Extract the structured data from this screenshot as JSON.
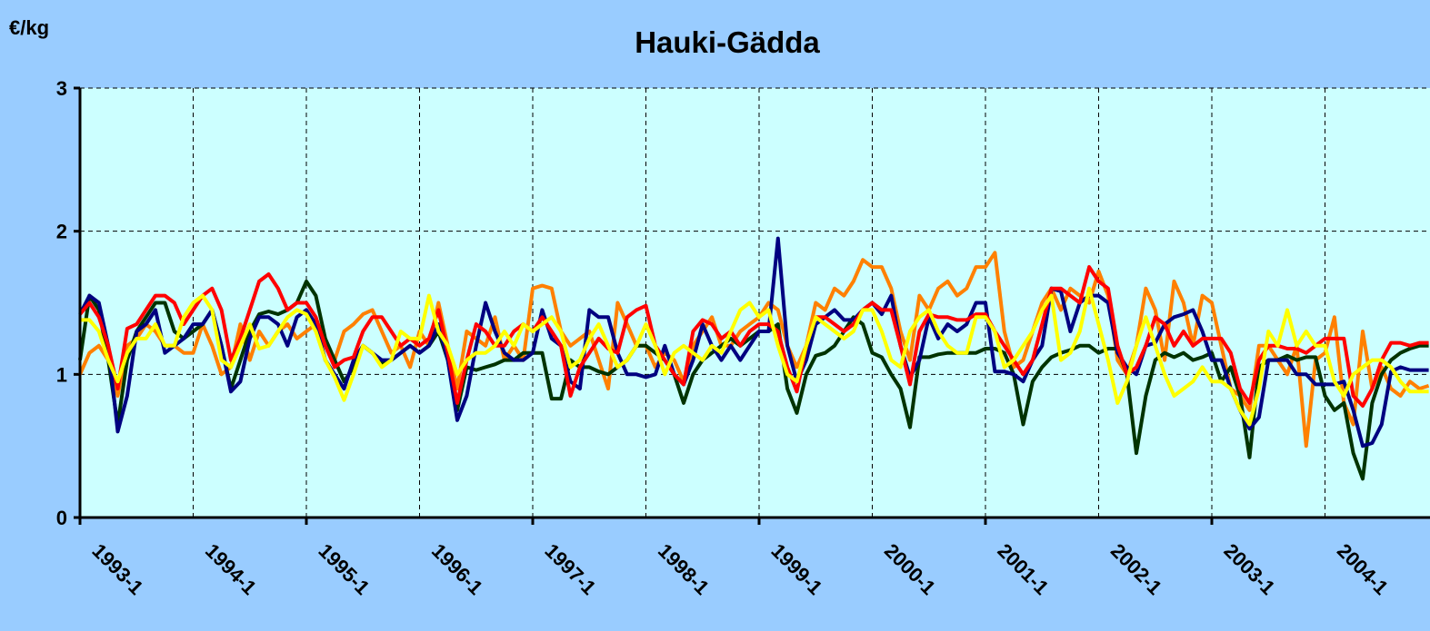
{
  "chart_data": {
    "type": "line",
    "title": "Hauki-Gädda",
    "y_label": "€/kg",
    "categories": [
      "1993-1",
      null,
      null,
      null,
      null,
      null,
      null,
      null,
      null,
      null,
      null,
      null,
      "1994-1",
      null,
      null,
      null,
      null,
      null,
      null,
      null,
      null,
      null,
      null,
      null,
      "1995-1",
      null,
      null,
      null,
      null,
      null,
      null,
      null,
      null,
      null,
      null,
      null,
      "1996-1",
      null,
      null,
      null,
      null,
      null,
      null,
      null,
      null,
      null,
      null,
      null,
      "1997-1",
      null,
      null,
      null,
      null,
      null,
      null,
      null,
      null,
      null,
      null,
      null,
      "1998-1",
      null,
      null,
      null,
      null,
      null,
      null,
      null,
      null,
      null,
      null,
      null,
      "1999-1",
      null,
      null,
      null,
      null,
      null,
      null,
      null,
      null,
      null,
      null,
      null,
      "2000-1",
      null,
      null,
      null,
      null,
      null,
      null,
      null,
      null,
      null,
      null,
      null,
      "2001-1",
      null,
      null,
      null,
      null,
      null,
      null,
      null,
      null,
      null,
      null,
      null,
      "2002-1",
      null,
      null,
      null,
      null,
      null,
      null,
      null,
      null,
      null,
      null,
      null,
      "2003-1",
      null,
      null,
      null,
      null,
      null,
      null,
      null,
      null,
      null,
      null,
      null,
      "2004-1",
      null,
      null,
      null,
      null,
      null,
      null,
      null,
      null,
      null,
      null,
      null
    ],
    "series": [
      {
        "color": "#ff8000",
        "values": [
          1.0,
          1.15,
          1.2,
          1.1,
          0.85,
          1.2,
          1.25,
          1.35,
          1.3,
          1.2,
          1.2,
          1.15,
          1.15,
          1.35,
          1.2,
          1.0,
          1.05,
          1.35,
          1.1,
          1.3,
          1.2,
          1.3,
          1.35,
          1.25,
          1.3,
          1.35,
          1.2,
          1.1,
          1.3,
          1.35,
          1.42,
          1.45,
          1.3,
          1.15,
          1.2,
          1.05,
          1.3,
          1.2,
          1.5,
          1.2,
          0.9,
          1.3,
          1.25,
          1.2,
          1.4,
          1.1,
          1.2,
          1.1,
          1.6,
          1.62,
          1.6,
          1.3,
          1.2,
          1.25,
          1.3,
          1.1,
          0.9,
          1.5,
          1.35,
          1.2,
          1.2,
          1.05,
          1.15,
          1.1,
          0.95,
          1.2,
          1.3,
          1.4,
          1.2,
          1.2,
          1.3,
          1.35,
          1.4,
          1.5,
          1.45,
          1.2,
          1.05,
          1.2,
          1.5,
          1.45,
          1.6,
          1.55,
          1.65,
          1.8,
          1.75,
          1.75,
          1.6,
          1.3,
          1.1,
          1.55,
          1.45,
          1.6,
          1.65,
          1.55,
          1.6,
          1.75,
          1.75,
          1.85,
          1.3,
          1.05,
          1.1,
          1.3,
          1.5,
          1.6,
          1.45,
          1.6,
          1.55,
          1.5,
          1.72,
          1.55,
          1.1,
          1.0,
          1.2,
          1.6,
          1.45,
          1.1,
          1.65,
          1.5,
          1.2,
          1.55,
          1.5,
          1.2,
          0.9,
          0.85,
          0.75,
          1.2,
          1.2,
          1.1,
          1.0,
          1.2,
          0.5,
          1.1,
          1.15,
          1.4,
          0.8,
          0.65,
          1.3,
          0.9,
          1.05,
          0.9,
          0.85,
          0.95,
          0.9,
          0.92
        ]
      },
      {
        "color": "#003300",
        "values": [
          1.1,
          1.55,
          1.45,
          1.1,
          0.65,
          1.1,
          1.3,
          1.4,
          1.5,
          1.5,
          1.3,
          1.25,
          1.3,
          1.35,
          1.45,
          1.2,
          0.9,
          1.1,
          1.3,
          1.42,
          1.44,
          1.42,
          1.45,
          1.5,
          1.65,
          1.55,
          1.25,
          1.1,
          0.95,
          1.05,
          1.2,
          1.15,
          1.08,
          1.1,
          1.15,
          1.2,
          1.15,
          1.2,
          1.3,
          1.1,
          0.75,
          1.05,
          1.03,
          1.05,
          1.07,
          1.1,
          1.1,
          1.15,
          1.15,
          1.15,
          0.83,
          0.83,
          1.1,
          1.05,
          1.05,
          1.02,
          1.0,
          1.05,
          1.1,
          1.2,
          1.2,
          1.15,
          1.1,
          1.0,
          0.8,
          1.0,
          1.1,
          1.15,
          1.2,
          1.25,
          1.2,
          1.25,
          1.3,
          1.3,
          1.35,
          0.9,
          0.73,
          1.0,
          1.13,
          1.15,
          1.2,
          1.3,
          1.4,
          1.35,
          1.15,
          1.12,
          1.0,
          0.9,
          0.63,
          1.12,
          1.12,
          1.14,
          1.15,
          1.15,
          1.15,
          1.15,
          1.18,
          1.18,
          1.15,
          1.0,
          0.65,
          0.95,
          1.05,
          1.12,
          1.15,
          1.17,
          1.2,
          1.2,
          1.15,
          1.18,
          1.18,
          1.0,
          0.45,
          0.85,
          1.1,
          1.15,
          1.12,
          1.15,
          1.1,
          1.12,
          1.15,
          0.95,
          1.05,
          0.85,
          0.42,
          1.05,
          1.1,
          1.1,
          1.13,
          1.1,
          1.12,
          1.12,
          0.85,
          0.75,
          0.8,
          0.45,
          0.27,
          0.8,
          1.0,
          1.1,
          1.15,
          1.18,
          1.2,
          1.2
        ]
      },
      {
        "color": "#000080",
        "values": [
          1.42,
          1.55,
          1.5,
          1.2,
          0.6,
          0.85,
          1.3,
          1.35,
          1.45,
          1.15,
          1.2,
          1.25,
          1.35,
          1.35,
          1.45,
          1.2,
          0.88,
          0.95,
          1.25,
          1.4,
          1.4,
          1.35,
          1.2,
          1.4,
          1.45,
          1.35,
          1.1,
          1.0,
          0.9,
          1.1,
          1.2,
          1.15,
          1.1,
          1.1,
          1.15,
          1.2,
          1.15,
          1.2,
          1.35,
          1.1,
          0.68,
          0.85,
          1.2,
          1.5,
          1.3,
          1.15,
          1.1,
          1.1,
          1.15,
          1.45,
          1.25,
          1.2,
          0.95,
          0.9,
          1.45,
          1.4,
          1.4,
          1.15,
          1.0,
          1.0,
          0.98,
          1.0,
          1.2,
          1.0,
          0.93,
          1.1,
          1.35,
          1.2,
          1.1,
          1.2,
          1.1,
          1.2,
          1.3,
          1.3,
          1.95,
          1.2,
          0.95,
          1.1,
          1.35,
          1.4,
          1.45,
          1.38,
          1.38,
          1.45,
          1.5,
          1.42,
          1.55,
          1.2,
          0.98,
          1.1,
          1.4,
          1.25,
          1.35,
          1.3,
          1.35,
          1.5,
          1.5,
          1.02,
          1.02,
          1.0,
          0.95,
          1.1,
          1.2,
          1.6,
          1.58,
          1.3,
          1.5,
          1.55,
          1.55,
          1.5,
          1.15,
          1.05,
          1.0,
          1.2,
          1.22,
          1.35,
          1.4,
          1.42,
          1.45,
          1.3,
          1.1,
          1.1,
          0.9,
          0.75,
          0.62,
          0.7,
          1.1,
          1.1,
          1.1,
          1.0,
          1.0,
          0.93,
          0.93,
          0.93,
          0.95,
          0.75,
          0.5,
          0.52,
          0.65,
          1.02,
          1.05,
          1.03,
          1.03,
          1.03
        ]
      },
      {
        "color": "#ff0000",
        "values": [
          1.42,
          1.5,
          1.4,
          1.2,
          0.9,
          1.32,
          1.35,
          1.45,
          1.55,
          1.55,
          1.5,
          1.35,
          1.45,
          1.55,
          1.6,
          1.45,
          1.1,
          1.25,
          1.45,
          1.65,
          1.7,
          1.6,
          1.45,
          1.5,
          1.5,
          1.4,
          1.2,
          1.05,
          1.1,
          1.12,
          1.3,
          1.4,
          1.4,
          1.3,
          1.2,
          1.25,
          1.2,
          1.25,
          1.45,
          1.15,
          0.8,
          1.1,
          1.35,
          1.3,
          1.2,
          1.2,
          1.3,
          1.35,
          1.3,
          1.4,
          1.3,
          1.2,
          0.85,
          1.05,
          1.15,
          1.25,
          1.18,
          1.15,
          1.4,
          1.45,
          1.48,
          1.2,
          1.1,
          1.0,
          0.93,
          1.3,
          1.38,
          1.35,
          1.25,
          1.3,
          1.2,
          1.3,
          1.35,
          1.35,
          1.3,
          1.05,
          0.88,
          1.2,
          1.4,
          1.4,
          1.35,
          1.3,
          1.35,
          1.45,
          1.5,
          1.45,
          1.45,
          1.2,
          0.93,
          1.3,
          1.42,
          1.4,
          1.4,
          1.38,
          1.38,
          1.42,
          1.42,
          1.3,
          1.2,
          1.1,
          1.0,
          1.1,
          1.35,
          1.6,
          1.6,
          1.55,
          1.5,
          1.75,
          1.65,
          1.6,
          1.2,
          1.0,
          1.05,
          1.2,
          1.4,
          1.35,
          1.2,
          1.3,
          1.2,
          1.25,
          1.25,
          1.25,
          1.15,
          0.9,
          0.8,
          1.1,
          1.2,
          1.2,
          1.18,
          1.18,
          1.15,
          1.2,
          1.25,
          1.25,
          1.25,
          0.85,
          0.78,
          0.9,
          1.1,
          1.22,
          1.22,
          1.2,
          1.22,
          1.22
        ]
      },
      {
        "color": "#ffff00",
        "values": [
          1.38,
          1.38,
          1.3,
          1.1,
          0.95,
          1.15,
          1.25,
          1.25,
          1.35,
          1.2,
          1.2,
          1.4,
          1.5,
          1.55,
          1.45,
          1.1,
          1.05,
          1.2,
          1.35,
          1.18,
          1.2,
          1.3,
          1.4,
          1.45,
          1.42,
          1.3,
          1.1,
          0.98,
          0.82,
          1.0,
          1.2,
          1.15,
          1.05,
          1.1,
          1.3,
          1.25,
          1.25,
          1.55,
          1.3,
          1.2,
          1.0,
          1.1,
          1.15,
          1.15,
          1.2,
          1.3,
          1.2,
          1.35,
          1.3,
          1.35,
          1.4,
          1.3,
          1.05,
          1.1,
          1.25,
          1.35,
          1.2,
          1.05,
          1.1,
          1.2,
          1.35,
          1.2,
          1.0,
          1.15,
          1.2,
          1.15,
          1.1,
          1.2,
          1.15,
          1.3,
          1.45,
          1.5,
          1.4,
          1.45,
          1.2,
          1.0,
          0.95,
          1.2,
          1.4,
          1.35,
          1.3,
          1.25,
          1.3,
          1.45,
          1.45,
          1.3,
          1.1,
          1.05,
          1.3,
          1.4,
          1.45,
          1.3,
          1.2,
          1.15,
          1.15,
          1.4,
          1.4,
          1.3,
          1.05,
          1.1,
          1.2,
          1.3,
          1.45,
          1.55,
          1.1,
          1.15,
          1.3,
          1.6,
          1.35,
          1.1,
          0.8,
          0.95,
          1.2,
          1.4,
          1.2,
          1.0,
          0.85,
          0.9,
          0.95,
          1.05,
          0.95,
          0.95,
          0.9,
          0.75,
          0.65,
          0.9,
          1.3,
          1.2,
          1.45,
          1.2,
          1.3,
          1.2,
          1.2,
          0.95,
          0.85,
          1.0,
          1.05,
          1.1,
          1.1,
          1.05,
          0.95,
          0.88,
          0.88,
          0.88
        ]
      }
    ],
    "ylim": [
      0,
      3
    ],
    "yticks": [
      0,
      1,
      2,
      3
    ],
    "grid": true
  }
}
